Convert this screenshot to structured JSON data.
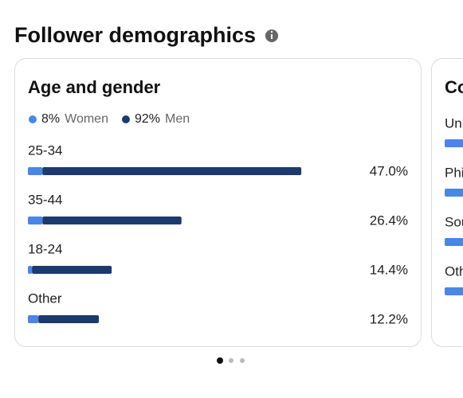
{
  "header": {
    "title": "Follower demographics"
  },
  "chart_data": {
    "type": "bar",
    "title": "Age and gender",
    "stacked": true,
    "categories": [
      "25-34",
      "35-44",
      "18-24",
      "Other"
    ],
    "series": [
      {
        "name": "Women",
        "share_label": "8%",
        "color": "#4a86e8",
        "values": [
          2.5,
          2.5,
          0.7,
          1.8
        ]
      },
      {
        "name": "Men",
        "share_label": "92%",
        "color": "#1d3a6e",
        "values": [
          44.5,
          23.9,
          13.7,
          10.4
        ]
      }
    ],
    "value_labels": [
      "47.0%",
      "26.4%",
      "14.4%",
      "12.2%"
    ]
  },
  "second_card": {
    "title": "Countries",
    "rows": [
      "United States",
      "Philippines",
      "South Africa",
      "Other"
    ]
  }
}
